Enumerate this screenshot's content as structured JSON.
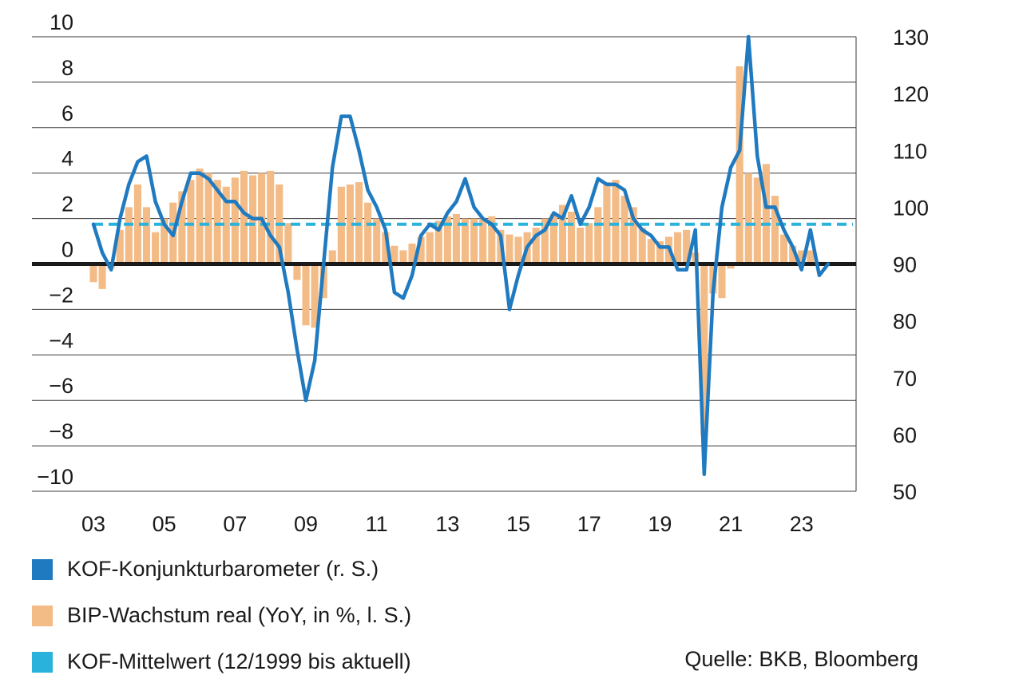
{
  "colors": {
    "kof": "#1f7ac0",
    "gdp": "#f3bb85",
    "mean": "#29b2dc",
    "zero": "#1a1a1a",
    "grid": "#3a3a3a"
  },
  "legend": {
    "kof": "KOF-Konjunkturbarometer (r. S.)",
    "gdp": "BIP-Wachstum real (YoY, in %, l. S.)",
    "mean": "KOF-Mittelwert (12/1999 bis aktuell)"
  },
  "source": "Quelle: BKB, Bloomberg",
  "chart_data": {
    "type": "bar+line",
    "x_range": [
      2003,
      2023.75
    ],
    "x_tick_labels": [
      "03",
      "05",
      "07",
      "09",
      "11",
      "13",
      "15",
      "17",
      "19",
      "21",
      "23"
    ],
    "y_left": {
      "ylim": [
        -10,
        10
      ],
      "ticks": [
        10,
        8,
        6,
        4,
        2,
        0,
        -2,
        -4,
        -6,
        -8,
        -10
      ],
      "tick_labels": [
        "10",
        "8",
        "6",
        "4",
        "2",
        "0",
        "−2",
        "−4",
        "−6",
        "−8",
        "−10"
      ]
    },
    "y_right": {
      "ylim": [
        50,
        130
      ],
      "ticks": [
        130,
        120,
        110,
        100,
        90,
        80,
        70,
        60,
        50
      ],
      "tick_labels": [
        "130",
        "120",
        "110",
        "100",
        "90",
        "80",
        "70",
        "60",
        "50"
      ]
    },
    "grid": true,
    "legend_position": "bottom",
    "series": [
      {
        "key": "gdp",
        "name": "BIP-Wachstum real (YoY, in %, l. S.)",
        "type": "bar",
        "axis": "left",
        "x": [
          2003.0,
          2003.25,
          2003.5,
          2003.75,
          2004.0,
          2004.25,
          2004.5,
          2004.75,
          2005.0,
          2005.25,
          2005.5,
          2005.75,
          2006.0,
          2006.25,
          2006.5,
          2006.75,
          2007.0,
          2007.25,
          2007.5,
          2007.75,
          2008.0,
          2008.25,
          2008.5,
          2008.75,
          2009.0,
          2009.25,
          2009.5,
          2009.75,
          2010.0,
          2010.25,
          2010.5,
          2010.75,
          2011.0,
          2011.25,
          2011.5,
          2011.75,
          2012.0,
          2012.25,
          2012.5,
          2012.75,
          2013.0,
          2013.25,
          2013.5,
          2013.75,
          2014.0,
          2014.25,
          2014.5,
          2014.75,
          2015.0,
          2015.25,
          2015.5,
          2015.75,
          2016.0,
          2016.25,
          2016.5,
          2016.75,
          2017.0,
          2017.25,
          2017.5,
          2017.75,
          2018.0,
          2018.25,
          2018.5,
          2018.75,
          2019.0,
          2019.25,
          2019.5,
          2019.75,
          2020.0,
          2020.25,
          2020.5,
          2020.75,
          2021.0,
          2021.25,
          2021.5,
          2021.75,
          2022.0,
          2022.25,
          2022.5,
          2022.75,
          2023.0,
          2023.25
        ],
        "values": [
          -0.8,
          -1.1,
          -0.2,
          1.5,
          2.5,
          3.5,
          2.5,
          1.4,
          2.0,
          2.7,
          3.2,
          3.7,
          4.2,
          4.0,
          3.7,
          3.4,
          3.8,
          4.1,
          3.9,
          4.0,
          4.1,
          3.5,
          1.8,
          -0.7,
          -2.7,
          -2.8,
          -1.5,
          0.6,
          3.4,
          3.5,
          3.6,
          2.7,
          2.0,
          1.4,
          0.8,
          0.6,
          0.9,
          1.2,
          1.4,
          1.9,
          2.1,
          2.2,
          2.0,
          2.0,
          2.0,
          2.1,
          1.5,
          1.3,
          1.2,
          1.4,
          1.6,
          2.0,
          2.2,
          2.6,
          2.3,
          1.6,
          1.8,
          2.5,
          3.6,
          3.7,
          3.0,
          2.5,
          1.6,
          1.1,
          1.0,
          1.2,
          1.4,
          1.5,
          0.5,
          -7.5,
          -1.3,
          -1.5,
          -0.2,
          8.7,
          4.0,
          3.8,
          4.4,
          3.0,
          1.3,
          0.8,
          0.6,
          0.6
        ]
      },
      {
        "key": "kof",
        "name": "KOF-Konjunkturbarometer (r. S.)",
        "type": "line",
        "axis": "right",
        "x": [
          2003.0,
          2003.25,
          2003.5,
          2003.75,
          2004.0,
          2004.25,
          2004.5,
          2004.75,
          2005.0,
          2005.25,
          2005.5,
          2005.75,
          2006.0,
          2006.25,
          2006.5,
          2006.75,
          2007.0,
          2007.25,
          2007.5,
          2007.75,
          2008.0,
          2008.25,
          2008.5,
          2008.75,
          2009.0,
          2009.25,
          2009.5,
          2009.75,
          2010.0,
          2010.25,
          2010.5,
          2010.75,
          2011.0,
          2011.25,
          2011.5,
          2011.75,
          2012.0,
          2012.25,
          2012.5,
          2012.75,
          2013.0,
          2013.25,
          2013.5,
          2013.75,
          2014.0,
          2014.25,
          2014.5,
          2014.75,
          2015.0,
          2015.25,
          2015.5,
          2015.75,
          2016.0,
          2016.25,
          2016.5,
          2016.75,
          2017.0,
          2017.25,
          2017.5,
          2017.75,
          2018.0,
          2018.25,
          2018.5,
          2018.75,
          2019.0,
          2019.25,
          2019.5,
          2019.75,
          2020.0,
          2020.25,
          2020.5,
          2020.75,
          2021.0,
          2021.25,
          2021.5,
          2021.75,
          2022.0,
          2022.25,
          2022.5,
          2022.75,
          2023.0,
          2023.25,
          2023.5,
          2023.75
        ],
        "values": [
          97,
          92,
          89,
          98,
          104,
          108,
          109,
          101,
          97,
          95,
          101,
          106,
          106,
          105,
          103,
          101,
          101,
          99,
          98,
          98,
          95,
          93,
          85,
          75,
          66,
          73,
          90,
          107,
          116,
          116,
          110,
          103,
          100,
          96,
          85,
          84,
          88,
          95,
          97,
          96,
          99,
          101,
          105,
          100,
          98,
          97,
          95,
          82,
          88,
          93,
          95,
          96,
          99,
          98,
          102,
          97,
          100,
          105,
          104,
          104,
          103,
          98,
          96,
          95,
          93,
          93,
          89,
          89,
          96,
          53,
          85,
          100,
          107,
          110,
          130,
          109,
          100,
          100,
          96,
          93,
          89,
          96,
          88,
          90
        ]
      },
      {
        "key": "mean",
        "name": "KOF-Mittelwert (12/1999 bis aktuell)",
        "type": "hline",
        "axis": "right",
        "values": [
          97
        ]
      }
    ]
  }
}
